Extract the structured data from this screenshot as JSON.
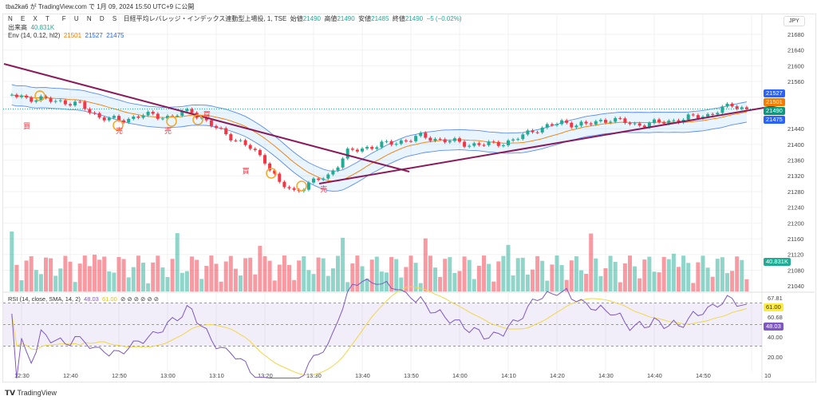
{
  "published": "tba2ka6 が TradingView.com で 1月 09, 2024 15:50 UTC+9 に公開",
  "symbol": {
    "name": "N E X T　F U N D S",
    "desc": "日経平均レバレッジ・インデックス連動型上場投, 1, TSE",
    "o_label": "始値",
    "o": "21490",
    "h_label": "高値",
    "h": "21490",
    "l_label": "安値",
    "l": "21485",
    "c_label": "終値",
    "c": "21490",
    "chg": "−5 (−0.02%)"
  },
  "volume": {
    "label": "出来高",
    "value": "40.831K"
  },
  "env": {
    "label": "Env (14, 0.12, hl2)",
    "mid": "21501",
    "upper": "21527",
    "lower": "21475"
  },
  "rsi": {
    "label": "RSI (14, close, SMA, 14, 2)",
    "rsi": "48.03",
    "ma": "61.00",
    "icons": "⊘ ⊘ ⊘ ⊘ ⊘ ⊘"
  },
  "currency": "JPY",
  "price_ticks": [
    "21680",
    "21640",
    "21600",
    "21560",
    "21440",
    "21400",
    "21360",
    "21320",
    "21280",
    "21240",
    "21200",
    "21160",
    "21120",
    "21080",
    "21040"
  ],
  "price_tag_values": [
    21680,
    21640,
    21600,
    21560,
    21440,
    21400,
    21360,
    21320,
    21280,
    21240,
    21200,
    21160,
    21120,
    21080,
    21040
  ],
  "tags": {
    "upper": "21527",
    "mid": "21501",
    "last": "21490",
    "lower": "21475",
    "vol": "40.831K"
  },
  "rsi_ticks": [
    "67.81",
    "60.68",
    "40.00",
    "20.00"
  ],
  "rsi_tags": {
    "ma": "61.00",
    "rsi": "48.03"
  },
  "time_ticks": [
    "12:30",
    "12:40",
    "12:50",
    "13:00",
    "13:10",
    "13:20",
    "13:30",
    "13:40",
    "13:50",
    "14:00",
    "14:10",
    "14:20",
    "14:30",
    "14:40",
    "14:50",
    "10"
  ],
  "price_path": [
    [
      28,
      21525
    ],
    [
      33,
      21515
    ],
    [
      38,
      21510
    ],
    [
      42,
      21500
    ],
    [
      46,
      21470
    ],
    [
      50,
      21460
    ],
    [
      55,
      21475
    ],
    [
      60,
      21470
    ],
    [
      65,
      21485
    ],
    [
      70,
      21440
    ],
    [
      73,
      21420
    ],
    [
      77,
      21390
    ],
    [
      80,
      21360
    ],
    [
      83,
      21300
    ],
    [
      86,
      21280
    ],
    [
      89,
      21300
    ],
    [
      93,
      21320
    ],
    [
      97,
      21380
    ],
    [
      102,
      21395
    ],
    [
      107,
      21405
    ],
    [
      112,
      21420
    ],
    [
      117,
      21410
    ],
    [
      122,
      21400
    ],
    [
      127,
      21400
    ],
    [
      131,
      21410
    ],
    [
      136,
      21440
    ],
    [
      141,
      21455
    ],
    [
      146,
      21450
    ],
    [
      151,
      21465
    ],
    [
      156,
      21450
    ],
    [
      161,
      21455
    ],
    [
      166,
      21465
    ],
    [
      171,
      21475
    ],
    [
      176,
      21500
    ],
    [
      179,
      21490
    ]
  ],
  "annotations": [
    {
      "text": "買",
      "m": 31,
      "p": 21440
    },
    {
      "text": "売",
      "m": 50,
      "p": 21428
    },
    {
      "text": "売",
      "m": 60,
      "p": 21428
    },
    {
      "text": "買",
      "m": 68,
      "p": 21470
    },
    {
      "text": "買",
      "m": 76,
      "p": 21325
    },
    {
      "text": "売",
      "m": 92,
      "p": 21280
    }
  ],
  "colors": {
    "up": "#22ab94",
    "down": "#f23645",
    "trend": "#8b1a5a",
    "band": "#5b8cf0"
  }
}
